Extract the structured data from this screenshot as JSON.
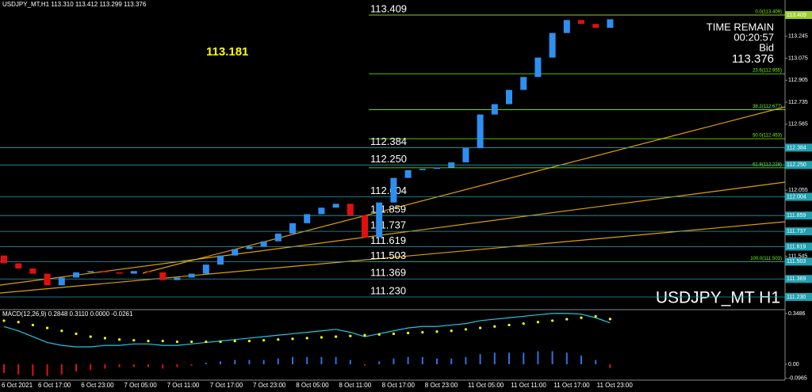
{
  "chart_data": {
    "type": "candlestick",
    "header": "USDJPY_MT,H1  113.310 113.412 113.299 113.376",
    "marker_label": "113.181",
    "info": {
      "time_title": "TIME REMAIN",
      "time": "00:20:57",
      "bid_title": "Bid",
      "bid": "113.376"
    },
    "symbol_label": "USDJPY_MT H1",
    "up_color": "#2f8ff0",
    "down_color": "#e01010",
    "ylim": [
      111.138,
      113.525
    ],
    "open": [
      111.55,
      111.49,
      111.45,
      111.41,
      111.32,
      111.38,
      111.42,
      111.43,
      111.42,
      111.41,
      111.43,
      111.42,
      111.36,
      111.38,
      111.41,
      111.48,
      111.55,
      111.6,
      111.62,
      111.66,
      111.72,
      111.8,
      111.87,
      111.92,
      111.95,
      111.86,
      111.69,
      111.96,
      112.15,
      112.21,
      112.22,
      112.23,
      112.27,
      112.38,
      112.64,
      112.72,
      112.83,
      112.93,
      113.08,
      113.27,
      113.37,
      113.34,
      113.31
    ],
    "close": [
      111.49,
      111.45,
      111.41,
      111.32,
      111.38,
      111.42,
      111.43,
      111.42,
      111.41,
      111.43,
      111.42,
      111.36,
      111.38,
      111.41,
      111.48,
      111.55,
      111.6,
      111.62,
      111.66,
      111.72,
      111.8,
      111.87,
      111.92,
      111.95,
      111.86,
      111.69,
      111.96,
      112.15,
      112.21,
      112.22,
      112.23,
      112.27,
      112.38,
      112.64,
      112.72,
      112.83,
      112.93,
      113.08,
      113.27,
      113.37,
      113.34,
      113.31,
      113.376
    ],
    "levels": [
      {
        "value": 113.409,
        "label": "113.409",
        "color": "#9acd32"
      },
      {
        "value": 112.384,
        "label": "112.384",
        "color": "#20a0b0"
      },
      {
        "value": 112.25,
        "label": "112.250",
        "color": "#20a0b0"
      },
      {
        "value": 112.004,
        "label": "112.004",
        "color": "#20a0b0"
      },
      {
        "value": 111.859,
        "label": "111.859",
        "color": "#20a0b0"
      },
      {
        "value": 111.737,
        "label": "111.737",
        "color": "#20a0b0"
      },
      {
        "value": 111.619,
        "label": "111.619",
        "color": "#20a0b0"
      },
      {
        "value": 111.503,
        "label": "111.503",
        "color": "#20a0b0"
      },
      {
        "value": 111.369,
        "label": "111.369",
        "color": "#20a0b0"
      },
      {
        "value": 111.23,
        "label": "111.230",
        "color": "#20a0b0"
      }
    ],
    "fib": [
      {
        "value": 113.409,
        "label": "0.0(113.409)"
      },
      {
        "value": 112.955,
        "label": "23.6(112.955)"
      },
      {
        "value": 112.677,
        "label": "38.2(112.677)"
      },
      {
        "value": 112.453,
        "label": "50.0(112.453)"
      },
      {
        "value": 112.228,
        "label": "61.8(112.228)"
      },
      {
        "value": 111.503,
        "label": "100.0(111.503)"
      }
    ],
    "fib_color": "#7cfc00",
    "yticks": [
      113.245,
      113.075,
      112.905,
      112.735,
      112.565,
      112.055,
      {
        "value": 111.545,
        "label": "111.545"
      }
    ],
    "time_labels": [
      "6 Oct 2021",
      "6 Oct 17:00",
      "6 Oct 23:00",
      "7 Oct 05:00",
      "7 Oct 11:00",
      "7 Oct 17:00",
      "7 Oct 23:00",
      "8 Oct 05:00",
      "8 Oct 11:00",
      "8 Oct 17:00",
      "8 Oct 23:00",
      "11 Oct 05:00",
      "11 Oct 11:00",
      "11 Oct 17:00",
      "11 Oct 23:00"
    ],
    "macd": {
      "label": "MACD(12,26,9) 0.2848 0.3110 0.0000 -0.0261",
      "ylim": [
        -0.109,
        0.3704
      ],
      "yticks": [
        {
          "value": 0.3486,
          "label": "0.3486"
        },
        {
          "value": 0,
          "label": "0.00"
        },
        {
          "value": -0.0965,
          "label": "-0.0965"
        }
      ],
      "hist": [
        -0.06,
        -0.07,
        -0.08,
        -0.08,
        -0.07,
        -0.05,
        -0.04,
        -0.03,
        -0.02,
        -0.02,
        -0.02,
        -0.03,
        -0.02,
        -0.01,
        0.01,
        0.02,
        0.03,
        0.03,
        0.03,
        0.04,
        0.05,
        0.05,
        0.05,
        0.05,
        0.03,
        -0.01,
        0.02,
        0.04,
        0.05,
        0.05,
        0.04,
        0.04,
        0.05,
        0.07,
        0.08,
        0.08,
        0.08,
        0.09,
        0.09,
        0.08,
        0.06,
        0.03,
        -0.026
      ],
      "signal": [
        0.3,
        0.29,
        0.27,
        0.25,
        0.23,
        0.21,
        0.19,
        0.18,
        0.17,
        0.165,
        0.16,
        0.16,
        0.155,
        0.155,
        0.155,
        0.155,
        0.16,
        0.16,
        0.165,
        0.17,
        0.175,
        0.18,
        0.185,
        0.19,
        0.195,
        0.2,
        0.205,
        0.21,
        0.215,
        0.22,
        0.225,
        0.23,
        0.24,
        0.25,
        0.26,
        0.27,
        0.28,
        0.29,
        0.3,
        0.31,
        0.32,
        0.33,
        0.311
      ],
      "main": [
        0.26,
        0.23,
        0.19,
        0.15,
        0.13,
        0.12,
        0.12,
        0.13,
        0.13,
        0.14,
        0.14,
        0.13,
        0.13,
        0.14,
        0.15,
        0.16,
        0.17,
        0.18,
        0.19,
        0.2,
        0.21,
        0.22,
        0.23,
        0.24,
        0.22,
        0.19,
        0.21,
        0.23,
        0.25,
        0.26,
        0.26,
        0.27,
        0.28,
        0.3,
        0.31,
        0.32,
        0.33,
        0.34,
        0.35,
        0.35,
        0.345,
        0.32,
        0.2848
      ],
      "hist_up_color": "#3070e0",
      "hist_down_color": "#e01010",
      "signal_color": "#ffff00",
      "main_color": "#20c8e0"
    }
  }
}
